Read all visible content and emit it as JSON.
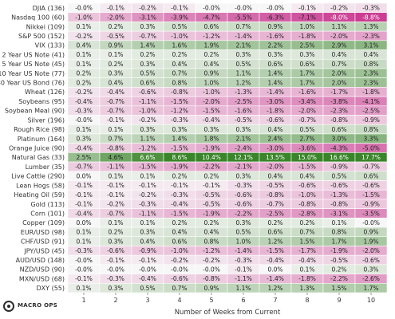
{
  "brand": {
    "name": "MACRO OPS"
  },
  "chart_data": {
    "type": "heatmap",
    "xlabel": "Number of Weeks from Current",
    "columns": [
      1,
      2,
      3,
      4,
      5,
      6,
      7,
      8,
      9,
      10
    ],
    "rows": [
      {
        "label": "DJIA (136)",
        "values": [
          -0.0,
          -0.1,
          -0.2,
          -0.1,
          -0.0,
          -0.0,
          -0.0,
          -0.1,
          -0.2,
          -0.3
        ]
      },
      {
        "label": "Nasdaq 100 (60)",
        "values": [
          -1.0,
          -2.0,
          -3.1,
          -3.9,
          -4.7,
          -5.5,
          -6.3,
          -7.1,
          -8.0,
          -8.8
        ]
      },
      {
        "label": "Nikkei (109)",
        "values": [
          0.1,
          0.2,
          0.3,
          0.5,
          0.6,
          0.7,
          0.9,
          1.0,
          1.1,
          1.3
        ]
      },
      {
        "label": "S&P 500 (152)",
        "values": [
          -0.2,
          -0.5,
          -0.7,
          -1.0,
          -1.2,
          -1.4,
          -1.6,
          -1.8,
          -2.0,
          -2.3
        ]
      },
      {
        "label": "VIX (133)",
        "values": [
          0.4,
          0.9,
          1.4,
          1.6,
          1.9,
          2.1,
          2.2,
          2.5,
          2.9,
          3.1
        ]
      },
      {
        "label": "2 Year US Note (41)",
        "values": [
          0.1,
          0.1,
          0.2,
          0.2,
          0.2,
          0.3,
          0.3,
          0.3,
          0.4,
          0.4
        ]
      },
      {
        "label": "5 Year US Note (45)",
        "values": [
          0.1,
          0.2,
          0.3,
          0.4,
          0.4,
          0.5,
          0.6,
          0.6,
          0.7,
          0.8
        ]
      },
      {
        "label": "10 Year US Note (77)",
        "values": [
          0.2,
          0.3,
          0.5,
          0.7,
          0.9,
          1.1,
          1.4,
          1.7,
          2.0,
          2.3
        ]
      },
      {
        "label": "30 Year US Bond (76)",
        "values": [
          0.2,
          0.4,
          0.6,
          0.8,
          1.0,
          1.2,
          1.4,
          1.7,
          2.0,
          2.3
        ]
      },
      {
        "label": "Wheat (126)",
        "values": [
          -0.2,
          -0.4,
          -0.6,
          -0.8,
          -1.0,
          -1.3,
          -1.4,
          -1.6,
          -1.7,
          -1.8
        ]
      },
      {
        "label": "Soybeans (95)",
        "values": [
          -0.4,
          -0.7,
          -1.1,
          -1.5,
          -2.0,
          -2.5,
          -3.0,
          -3.4,
          -3.8,
          -4.1
        ]
      },
      {
        "label": "Soybean Meal (90)",
        "values": [
          -0.3,
          -0.7,
          -1.0,
          -1.2,
          -1.5,
          -1.6,
          -1.8,
          -2.0,
          -2.3,
          -2.5
        ]
      },
      {
        "label": "Silver (196)",
        "values": [
          -0.0,
          -0.1,
          -0.2,
          -0.3,
          -0.4,
          -0.5,
          -0.6,
          -0.7,
          -0.8,
          -0.9
        ]
      },
      {
        "label": "Rough Rice (98)",
        "values": [
          0.1,
          0.1,
          0.3,
          0.3,
          0.3,
          0.3,
          0.4,
          0.5,
          0.6,
          0.8
        ]
      },
      {
        "label": "Platinum (164)",
        "values": [
          0.3,
          0.7,
          1.1,
          1.4,
          1.8,
          2.1,
          2.4,
          2.7,
          3.0,
          3.3
        ]
      },
      {
        "label": "Orange Juice (90)",
        "values": [
          -0.4,
          -0.8,
          -1.2,
          -1.5,
          -1.9,
          -2.4,
          -3.0,
          -3.6,
          -4.3,
          -5.0
        ]
      },
      {
        "label": "Natural Gas (33)",
        "values": [
          2.5,
          4.6,
          6.6,
          8.6,
          10.4,
          12.1,
          13.5,
          15.0,
          16.6,
          17.7
        ]
      },
      {
        "label": "Lumber (35)",
        "values": [
          -0.7,
          -1.1,
          -1.5,
          -1.9,
          -2.2,
          -2.1,
          -2.0,
          -1.5,
          -0.9,
          -0.7
        ]
      },
      {
        "label": "Live Cattle (290)",
        "values": [
          0.0,
          0.1,
          0.1,
          0.2,
          0.2,
          0.3,
          0.4,
          0.4,
          0.5,
          0.6
        ]
      },
      {
        "label": "Lean Hogs (58)",
        "values": [
          -0.1,
          -0.1,
          -0.1,
          -0.1,
          -0.1,
          -0.3,
          -0.5,
          -0.6,
          -0.6,
          -0.6
        ]
      },
      {
        "label": "Heating Oil (59)",
        "values": [
          -0.1,
          -0.1,
          -0.2,
          -0.3,
          -0.5,
          -0.6,
          -0.8,
          -1.0,
          -1.3,
          -1.5
        ]
      },
      {
        "label": "Gold (113)",
        "values": [
          -0.1,
          -0.2,
          -0.3,
          -0.4,
          -0.5,
          -0.6,
          -0.7,
          -0.8,
          -0.8,
          -0.9
        ]
      },
      {
        "label": "Corn (101)",
        "values": [
          -0.4,
          -0.7,
          -1.1,
          -1.5,
          -1.9,
          -2.2,
          -2.5,
          -2.8,
          -3.1,
          -3.5
        ]
      },
      {
        "label": "Copper (109)",
        "values": [
          0.0,
          0.1,
          0.1,
          0.2,
          0.2,
          0.3,
          0.2,
          0.2,
          0.1,
          -0.0
        ]
      },
      {
        "label": "EUR/USD (98)",
        "values": [
          0.1,
          0.2,
          0.3,
          0.4,
          0.4,
          0.5,
          0.6,
          0.7,
          0.8,
          0.9
        ]
      },
      {
        "label": "CHF/USD (91)",
        "values": [
          0.1,
          0.3,
          0.4,
          0.6,
          0.8,
          1.0,
          1.2,
          1.5,
          1.7,
          1.9
        ]
      },
      {
        "label": "JPY/USD (45)",
        "values": [
          -0.3,
          -0.6,
          -0.9,
          -1.0,
          -1.2,
          -1.4,
          -1.5,
          -1.7,
          -1.9,
          -2.0
        ]
      },
      {
        "label": "AUD/USD (148)",
        "values": [
          -0.0,
          -0.1,
          -0.1,
          -0.2,
          -0.2,
          -0.3,
          -0.4,
          -0.4,
          -0.5,
          -0.6
        ]
      },
      {
        "label": "NZD/USD (90)",
        "values": [
          -0.0,
          -0.0,
          -0.0,
          -0.0,
          -0.0,
          -0.1,
          0.0,
          0.1,
          0.2,
          0.3
        ]
      },
      {
        "label": "MXN/USD (68)",
        "values": [
          -0.1,
          -0.3,
          -0.4,
          -0.6,
          -0.8,
          -1.1,
          -1.4,
          -1.8,
          -2.2,
          -2.6
        ]
      },
      {
        "label": "DXY (55)",
        "values": [
          0.1,
          0.3,
          0.5,
          0.7,
          0.9,
          1.1,
          1.2,
          1.3,
          1.5,
          1.7
        ]
      }
    ],
    "color_scale": {
      "negative": "#c2187f",
      "neutral": "#f7f7f7",
      "positive": "#2f7f1e",
      "bold_positive": "#1e6b14"
    }
  }
}
